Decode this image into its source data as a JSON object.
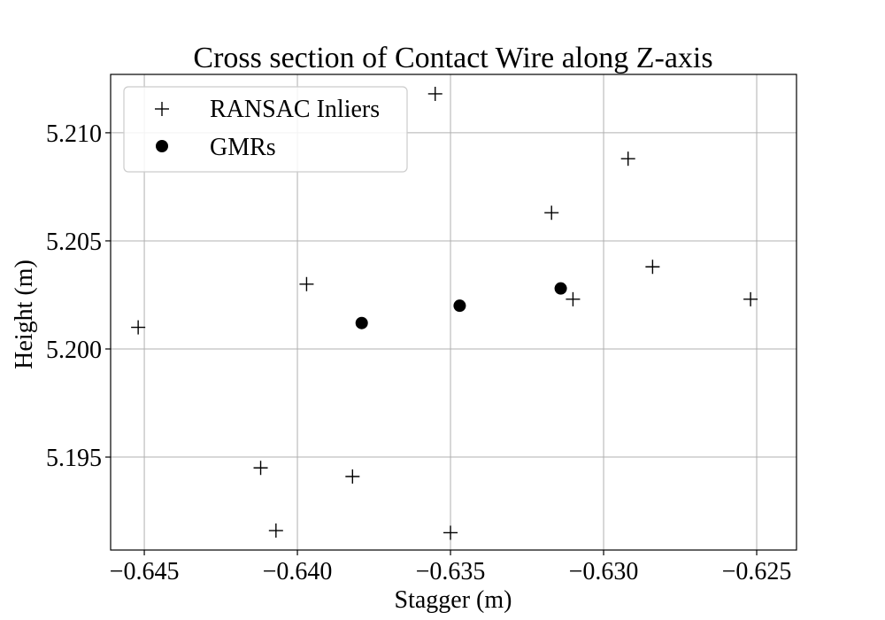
{
  "chart_data": {
    "type": "scatter",
    "title": "Cross section of Contact Wire along Z-axis",
    "xlabel": "Stagger (m)",
    "ylabel": "Height (m)",
    "xlim": [
      -0.6461,
      -0.6237
    ],
    "ylim": [
      5.1907,
      5.2127
    ],
    "xticks": [
      -0.645,
      -0.64,
      -0.635,
      -0.63,
      -0.625
    ],
    "xtick_labels": [
      "−0.645",
      "−0.640",
      "−0.635",
      "−0.630",
      "−0.625"
    ],
    "yticks": [
      5.195,
      5.2,
      5.205,
      5.21
    ],
    "ytick_labels": [
      "5.195",
      "5.200",
      "5.205",
      "5.210"
    ],
    "grid": true,
    "legend_position": "top-left",
    "series": [
      {
        "name": "RANSAC Inliers",
        "marker": "plus",
        "color": "#000000",
        "x": [
          -0.6452,
          -0.6412,
          -0.6407,
          -0.6397,
          -0.6382,
          -0.6355,
          -0.635,
          -0.6317,
          -0.631,
          -0.6292,
          -0.6284,
          -0.6252
        ],
        "y": [
          5.201,
          5.1945,
          5.1916,
          5.203,
          5.1941,
          5.2118,
          5.1915,
          5.2063,
          5.2023,
          5.2088,
          5.2038,
          5.2023
        ]
      },
      {
        "name": "GMRs",
        "marker": "circle",
        "color": "#000000",
        "x": [
          -0.6379,
          -0.6347,
          -0.6314
        ],
        "y": [
          5.2012,
          5.202,
          5.2028
        ]
      }
    ]
  }
}
